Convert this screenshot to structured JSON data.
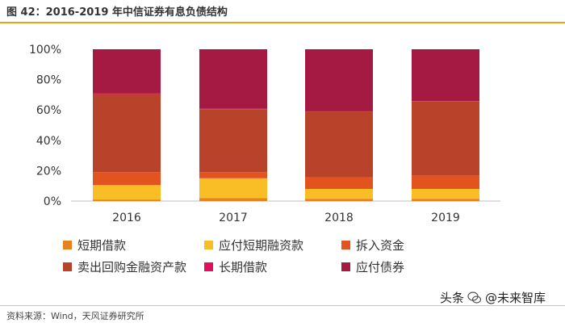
{
  "title": "图 42：2016-2019 年中信证券有息负债结构",
  "source": "资料来源：Wind，天风证券研究所",
  "watermark": {
    "prefix": "头条",
    "at": "@",
    "name": "未来智库",
    "icon": "wechat-icon"
  },
  "chart_data": {
    "type": "bar",
    "stacked": true,
    "percent": true,
    "title": "",
    "categories": [
      "2016",
      "2017",
      "2018",
      "2019"
    ],
    "y_ticks": [
      "0%",
      "20%",
      "40%",
      "60%",
      "80%",
      "100%"
    ],
    "ylim": [
      0,
      100
    ],
    "series": [
      {
        "name": "短期借款",
        "color": "#e8821e",
        "values": [
          1.0,
          2.0,
          1.5,
          1.5
        ]
      },
      {
        "name": "应付短期融资款",
        "color": "#f9be26",
        "values": [
          9.5,
          13.0,
          6.5,
          6.5
        ]
      },
      {
        "name": "拆入资金",
        "color": "#e2531f",
        "values": [
          8.5,
          4.0,
          7.5,
          9.0
        ]
      },
      {
        "name": "卖出回购金融资产款",
        "color": "#b8432a",
        "values": [
          51.5,
          41.5,
          43.5,
          48.5
        ]
      },
      {
        "name": "长期借款",
        "color": "#e0105c",
        "values": [
          0.3,
          0.3,
          0.3,
          0.3
        ]
      },
      {
        "name": "应付债券",
        "color": "#a41a42",
        "values": [
          29.2,
          39.2,
          40.7,
          34.2
        ]
      }
    ]
  }
}
